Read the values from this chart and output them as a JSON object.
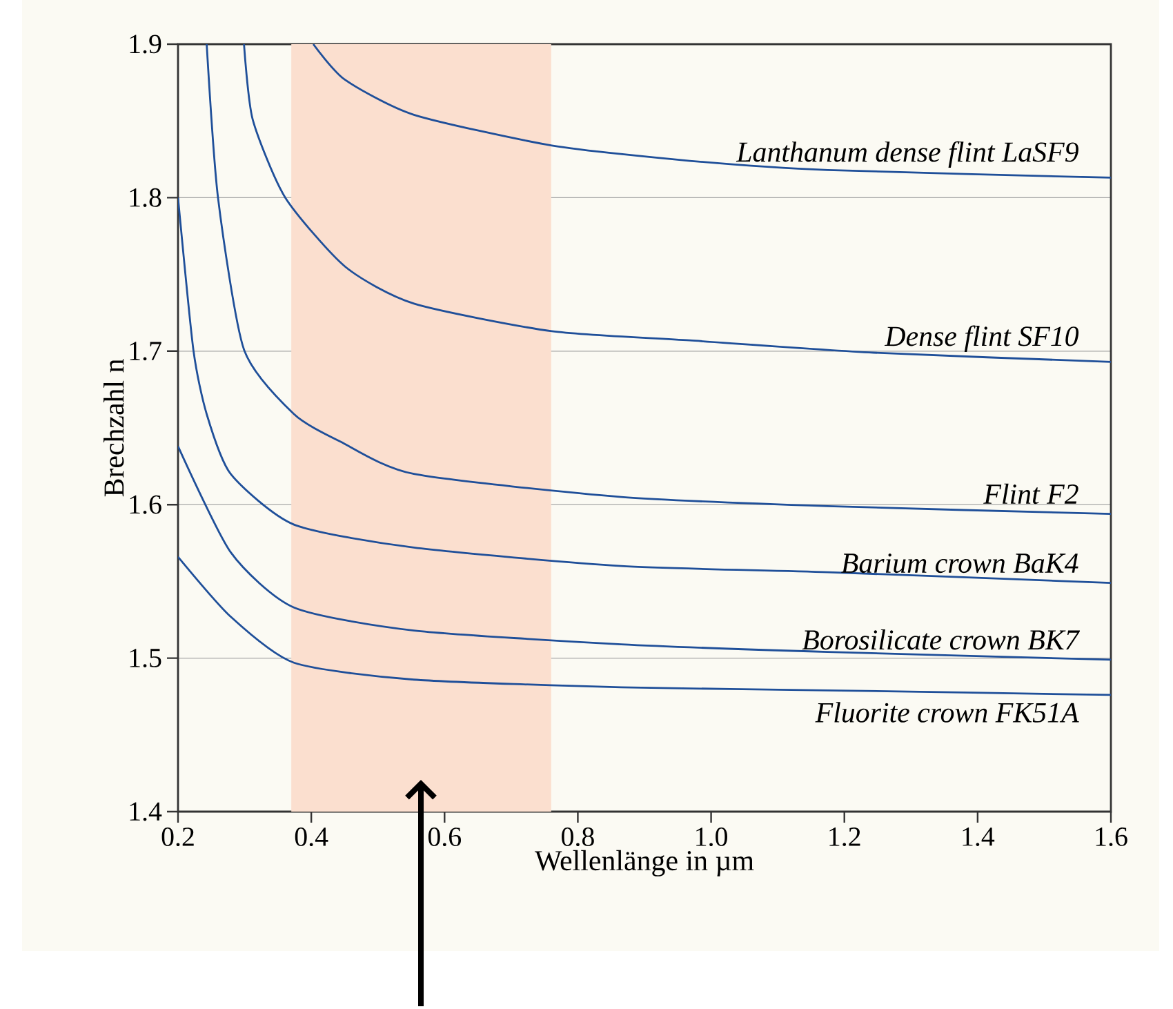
{
  "chart_data": {
    "type": "line",
    "xlabel": "Wellenlänge in µm",
    "ylabel": "Brechzahl n",
    "xlim": [
      0.2,
      1.6
    ],
    "ylim": [
      1.4,
      1.9
    ],
    "xticks": [
      0.2,
      0.4,
      0.6,
      0.8,
      {
        "value": 1.0,
        "label": "1.0"
      },
      1.2,
      1.4,
      1.6
    ],
    "yticks": [
      1.4,
      1.5,
      1.6,
      1.7,
      1.8,
      1.9
    ],
    "grid": "y",
    "bands": [
      {
        "axis": "x",
        "from": 0.37,
        "to": 0.76,
        "color": "#fbdfcf"
      }
    ],
    "series": [
      {
        "name": "Lanthanum dense flint LaSF9",
        "color": "#1f4f99",
        "x": [
          0.403,
          0.45,
          0.554,
          0.761,
          0.968,
          1.175,
          1.6
        ],
        "values": [
          1.9,
          1.877,
          1.854,
          1.834,
          1.824,
          1.818,
          1.813
        ]
      },
      {
        "name": "Dense flint SF10",
        "color": "#1f4f99",
        "x": [
          0.299,
          0.312,
          0.361,
          0.451,
          0.554,
          0.761,
          0.968,
          1.244,
          1.6
        ],
        "values": [
          1.9,
          1.851,
          1.8,
          1.755,
          1.731,
          1.713,
          1.707,
          1.699,
          1.693
        ]
      },
      {
        "name": "Flint F2",
        "color": "#1f4f99",
        "x": [
          0.243,
          0.26,
          0.299,
          0.374,
          0.444,
          0.554,
          0.865,
          1.175,
          1.6
        ],
        "values": [
          1.9,
          1.8,
          1.701,
          1.659,
          1.641,
          1.62,
          1.605,
          1.599,
          1.594
        ]
      },
      {
        "name": "Barium crown BaK4",
        "color": "#1f4f99",
        "x": [
          0.2,
          0.223,
          0.243,
          0.279,
          0.374,
          0.554,
          0.865,
          1.175,
          1.6
        ],
        "values": [
          1.8,
          1.701,
          1.659,
          1.62,
          1.587,
          1.572,
          1.56,
          1.556,
          1.549
        ]
      },
      {
        "name": "Borosilicate crown BK7",
        "color": "#1f4f99",
        "x": [
          0.2,
          0.279,
          0.374,
          0.554,
          0.865,
          1.175,
          1.6
        ],
        "values": [
          1.638,
          1.569,
          1.533,
          1.518,
          1.509,
          1.504,
          1.499
        ]
      },
      {
        "name": "Fluorite crown FK51A",
        "color": "#1f4f99",
        "x": [
          0.2,
          0.279,
          0.374,
          0.554,
          0.865,
          1.175,
          1.6
        ],
        "values": [
          1.566,
          1.527,
          1.497,
          1.486,
          1.481,
          1.479,
          1.476
        ]
      }
    ]
  }
}
